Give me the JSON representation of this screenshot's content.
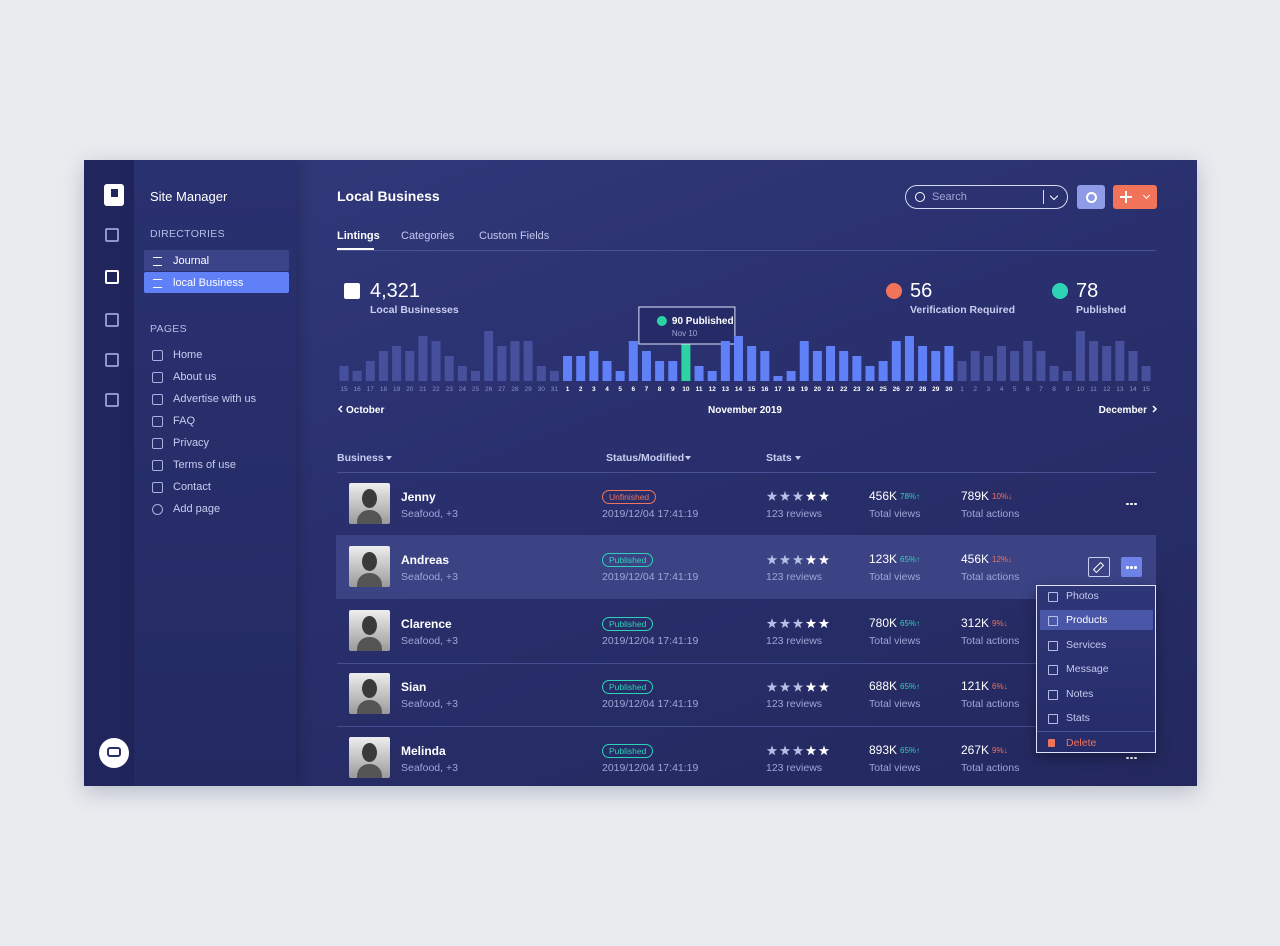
{
  "app": {
    "name": "Site Manager"
  },
  "sidebar": {
    "directories_title": "DIRECTORIES",
    "directories": [
      "Journal",
      "local Business"
    ],
    "pages_title": "PAGES",
    "pages": [
      "Home",
      "About us",
      "Advertise with us",
      "FAQ",
      "Privacy",
      "Terms of use",
      "Contact",
      "Add page"
    ]
  },
  "header": {
    "title": "Local Business",
    "search_placeholder": "Search"
  },
  "tabs": [
    "Lintings",
    "Categories",
    "Custom Fields"
  ],
  "kpis": [
    {
      "value": "4,321",
      "label": "Local Businesses",
      "color": "#ffffff"
    },
    {
      "value": "56",
      "label": "Verification Required",
      "color": "#f0735a"
    },
    {
      "value": "78",
      "label": "Published",
      "color": "#2ed3b7"
    }
  ],
  "chart": {
    "type": "bar",
    "groups": [
      {
        "label": "October",
        "color": "#46509c",
        "label_color": "#8a91c4",
        "categories": [
          "15",
          "16",
          "17",
          "18",
          "19",
          "20",
          "21",
          "22",
          "23",
          "24",
          "25",
          "26",
          "27",
          "28",
          "29",
          "30",
          "31"
        ],
        "values": [
          3,
          2,
          4,
          6,
          7,
          6,
          9,
          8,
          5,
          3,
          2,
          10,
          7,
          8,
          8,
          3,
          2
        ]
      },
      {
        "label": "November 2019",
        "color": "#5f80f7",
        "label_color": "#ffffff",
        "highlight": "10",
        "highlight_color": "#2ed3a4",
        "categories": [
          "1",
          "2",
          "3",
          "4",
          "5",
          "6",
          "7",
          "8",
          "9",
          "10",
          "11",
          "12",
          "13",
          "14",
          "15",
          "16",
          "17",
          "18",
          "19",
          "20",
          "21",
          "22",
          "23",
          "24",
          "25",
          "26",
          "27",
          "28",
          "29",
          "30"
        ],
        "values": [
          5,
          5,
          6,
          4,
          2,
          8,
          6,
          4,
          4,
          10,
          3,
          2,
          8,
          9,
          7,
          6,
          1,
          2,
          8,
          6,
          7,
          6,
          5,
          3,
          4,
          8,
          9,
          7,
          6,
          7
        ]
      },
      {
        "label": "December",
        "color": "#46509c",
        "label_color": "#8a91c4",
        "categories": [
          "1",
          "2",
          "3",
          "4",
          "5",
          "6",
          "7",
          "8",
          "9",
          "10",
          "11",
          "12",
          "13",
          "14",
          "15"
        ],
        "values": [
          4,
          6,
          5,
          7,
          6,
          8,
          6,
          3,
          2,
          10,
          8,
          7,
          8,
          6,
          3
        ]
      }
    ],
    "tooltip": {
      "title": "90 Published",
      "date": "Nov 10"
    }
  },
  "table": {
    "columns": [
      "Business",
      "Status/Modified",
      "Stats"
    ],
    "rows": [
      {
        "name": "Jenny",
        "category": "Seafood, +3",
        "status": "Unfinished",
        "status_color": "#f0735a",
        "modified": "2019/12/04 17:41:19",
        "reviews": "123 reviews",
        "views": "456K",
        "views_change": "78%↑",
        "views_label": "Total views",
        "actions": "789K",
        "actions_change": "10%↓",
        "actions_label": "Total actions"
      },
      {
        "name": "Andreas",
        "category": "Seafood, +3",
        "status": "Published",
        "status_color": "#2ed3b7",
        "modified": "2019/12/04 17:41:19",
        "reviews": "123 reviews",
        "views": "123K",
        "views_change": "65%↑",
        "views_label": "Total views",
        "actions": "456K",
        "actions_change": "12%↓",
        "actions_label": "Total actions"
      },
      {
        "name": "Clarence",
        "category": "Seafood, +3",
        "status": "Published",
        "status_color": "#2ed3b7",
        "modified": "2019/12/04 17:41:19",
        "reviews": "123 reviews",
        "views": "780K",
        "views_change": "65%↑",
        "views_label": "Total views",
        "actions": "312K",
        "actions_change": "9%↓",
        "actions_label": "Total actions"
      },
      {
        "name": "Sian",
        "category": "Seafood, +3",
        "status": "Published",
        "status_color": "#2ed3b7",
        "modified": "2019/12/04 17:41:19",
        "reviews": "123 reviews",
        "views": "688K",
        "views_change": "65%↑",
        "views_label": "Total views",
        "actions": "121K",
        "actions_change": "6%↓",
        "actions_label": "Total actions"
      },
      {
        "name": "Melinda",
        "category": "Seafood, +3",
        "status": "Published",
        "status_color": "#2ed3b7",
        "modified": "2019/12/04 17:41:19",
        "reviews": "123 reviews",
        "views": "893K",
        "views_change": "65%↑",
        "views_label": "Total views",
        "actions": "267K",
        "actions_change": "9%↓",
        "actions_label": "Total actions"
      }
    ]
  },
  "menu": {
    "items": [
      "Photos",
      "Products",
      "Services",
      "Message",
      "Notes",
      "Stats"
    ],
    "selected": "Products",
    "delete": "Delete"
  }
}
